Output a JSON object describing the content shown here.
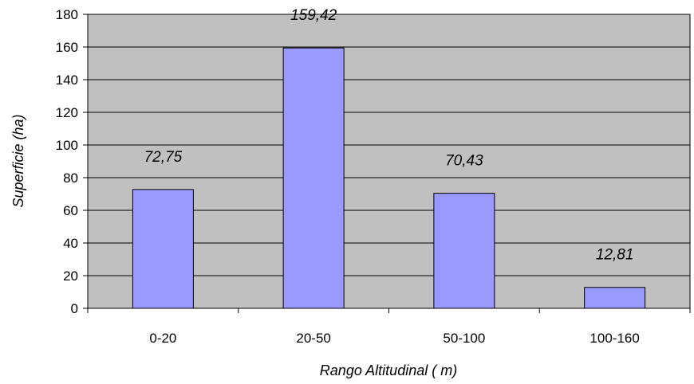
{
  "chart_data": {
    "type": "bar",
    "categories": [
      "0-20",
      "20-50",
      "50-100",
      "100-160"
    ],
    "values": [
      72.75,
      159.42,
      70.43,
      12.81
    ],
    "value_labels": [
      "72,75",
      "159,42",
      "70,43",
      "12,81"
    ],
    "title": "",
    "xlabel": "Rango Altitudinal ( m)",
    "ylabel": "Superficie (ha)",
    "ylim": [
      0,
      180
    ],
    "yticks": [
      0,
      20,
      40,
      60,
      80,
      100,
      120,
      140,
      160,
      180
    ],
    "grid": true,
    "legend": "none",
    "colors": {
      "plot_background": "#c0c0c0",
      "bar_fill": "#9999ff",
      "bar_stroke": "#000000",
      "gridline": "#000000"
    }
  }
}
